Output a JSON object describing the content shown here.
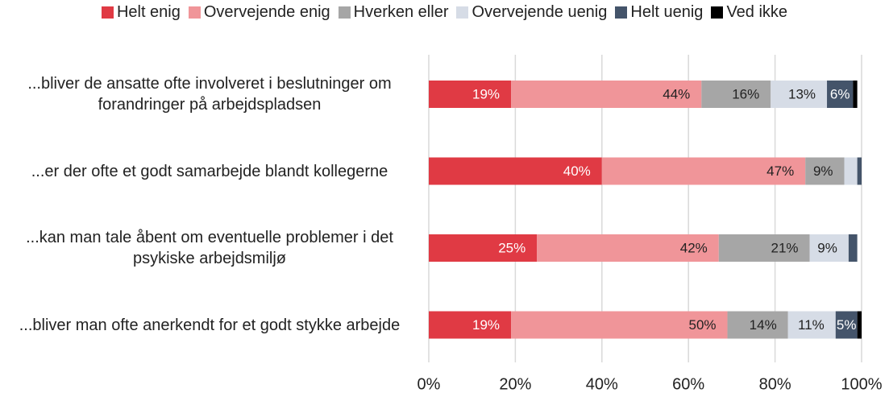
{
  "chart_data": {
    "type": "stacked-barh",
    "categories": [
      "...bliver de ansatte ofte involveret i beslutninger om forandringer på arbejdspladsen",
      "...er der ofte et godt samarbejde blandt kollegerne",
      "...kan man tale åbent om eventuelle problemer i det psykiske arbejdsmiljø",
      "...bliver man ofte anerkendt for et godt stykke arbejde"
    ],
    "series": [
      {
        "name": "Helt enig",
        "color": "#e03a44",
        "values": [
          19,
          40,
          25,
          19
        ],
        "value_labels": [
          "19%",
          "40%",
          "25%",
          "19%"
        ]
      },
      {
        "name": "Overvejende enig",
        "color": "#f09599",
        "values": [
          44,
          47,
          42,
          50
        ],
        "value_labels": [
          "44%",
          "47%",
          "42%",
          "50%"
        ]
      },
      {
        "name": "Hverken eller",
        "color": "#a6a6a6",
        "values": [
          16,
          9,
          21,
          14
        ],
        "value_labels": [
          "16%",
          "9%",
          "21%",
          "14%"
        ]
      },
      {
        "name": "Overvejende uenig",
        "color": "#d6dce6",
        "values": [
          13,
          3,
          9,
          11
        ],
        "value_labels": [
          "13%",
          null,
          "9%",
          "11%"
        ]
      },
      {
        "name": "Helt uenig",
        "color": "#44546a",
        "values": [
          6,
          1,
          2,
          5
        ],
        "value_labels": [
          "6%",
          null,
          null,
          "5%"
        ]
      },
      {
        "name": "Ved ikke",
        "color": "#000000",
        "values": [
          1,
          0,
          0,
          1
        ],
        "value_labels": [
          null,
          null,
          null,
          null
        ]
      }
    ],
    "xlim": [
      0,
      100
    ],
    "xticks": [
      {
        "value": 0,
        "label": "0%"
      },
      {
        "value": 20,
        "label": "20%"
      },
      {
        "value": 40,
        "label": "40%"
      },
      {
        "value": 60,
        "label": "60%"
      },
      {
        "value": 80,
        "label": "80%"
      },
      {
        "value": 100,
        "label": "100%"
      }
    ],
    "grid": true,
    "legend": "top"
  }
}
